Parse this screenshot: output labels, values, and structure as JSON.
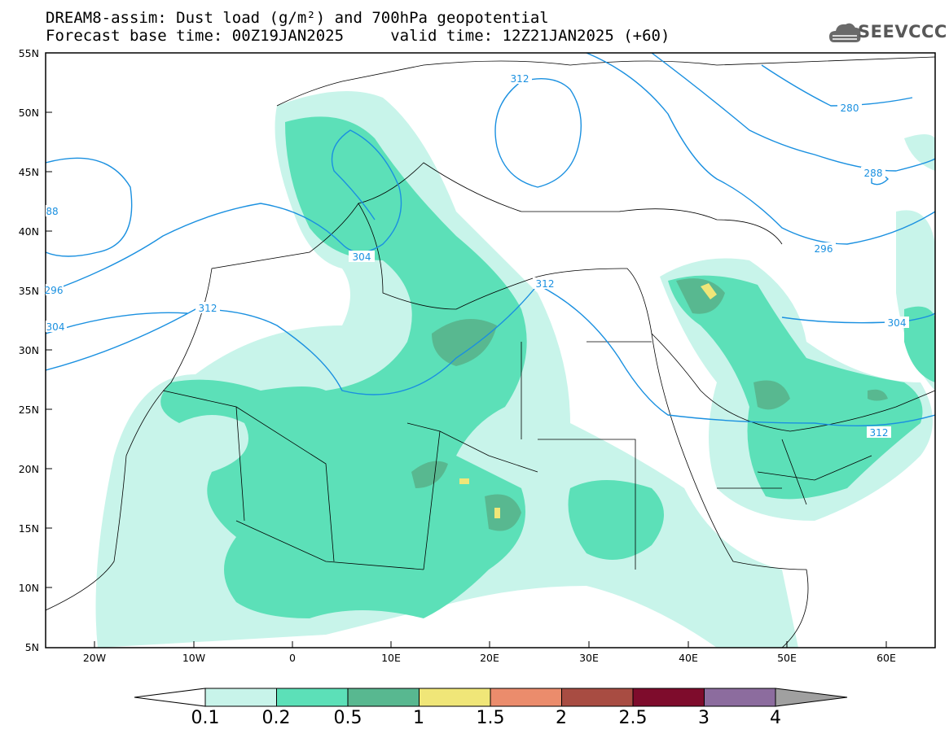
{
  "title_line1": "DREAM8-assim: Dust load (g/m²) and 700hPa geopotential",
  "title_line2": "Forecast base time: 00Z19JAN2025     valid time: 12Z21JAN2025 (+60)",
  "logo_text": "SEEVCCC",
  "lat_labels": [
    "55N",
    "50N",
    "45N",
    "40N",
    "35N",
    "30N",
    "25N",
    "20N",
    "15N",
    "10N",
    "5N"
  ],
  "lon_labels": [
    "20W",
    "10W",
    "0",
    "10E",
    "20E",
    "30E",
    "40E",
    "50E",
    "60E"
  ],
  "contour_labels": [
    "312",
    "280",
    "288",
    "88",
    "296",
    "304",
    "312",
    "304",
    "296",
    "312",
    "304",
    "312"
  ],
  "colorbar": {
    "colors": [
      "#c8f4ea",
      "#5ce0b8",
      "#58b890",
      "#f0e678",
      "#eb8c6c",
      "#a84c42",
      "#7e0c2c",
      "#8c6c9e"
    ],
    "low_arrow_color": "#ffffff",
    "high_arrow_color": "#a0a0a0",
    "labels": [
      "0.1",
      "0.2",
      "0.5",
      "1",
      "1.5",
      "2",
      "2.5",
      "3",
      "4"
    ]
  },
  "colors": {
    "dust_light": "#c8f4ea",
    "dust_mid": "#5ce0b8",
    "dust_dark": "#58b890",
    "dust_yellow": "#f0e678",
    "contour": "#1a90e0"
  }
}
